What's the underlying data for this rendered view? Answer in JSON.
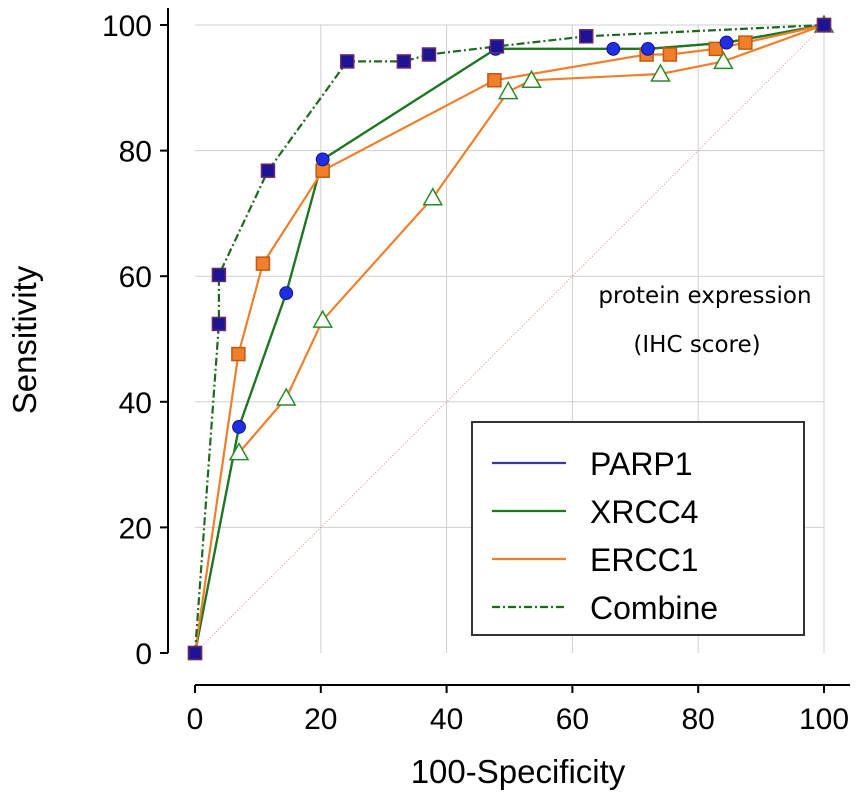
{
  "chart_data": {
    "type": "line",
    "title": "",
    "xlabel": "100-Specificity",
    "ylabel": "Sensitivity",
    "xlim": [
      0,
      100
    ],
    "ylim": [
      0,
      100
    ],
    "x_ticks": [
      "0",
      "20",
      "40",
      "60",
      "80",
      "100"
    ],
    "y_ticks": [
      "0",
      "20",
      "40",
      "60",
      "80",
      "100"
    ],
    "grid": true,
    "legend_position": "bottom-right",
    "annotations": [
      "protein expression",
      "(IHC score)"
    ],
    "reference_line": {
      "x": [
        0,
        100
      ],
      "y": [
        0,
        100
      ],
      "color": "#e08f8f",
      "style": "dotted"
    },
    "series": [
      {
        "name": "PARP1",
        "color": "#3a3a9a",
        "style": "solid",
        "marker": "circle",
        "marker_color": "#1f2ee0",
        "x": [
          0,
          7,
          14.5,
          20.3,
          47.8,
          66.5,
          72,
          84.5,
          100
        ],
        "y": [
          0,
          36,
          57.3,
          78.6,
          96.2,
          96.2,
          96.2,
          97.2,
          100
        ]
      },
      {
        "name": "XRCC4",
        "color": "#1b7a1b",
        "style": "solid",
        "marker": "none",
        "x": [
          0,
          7,
          14.5,
          20.3,
          47.8,
          72,
          84.5,
          100
        ],
        "y": [
          0,
          36,
          57.3,
          78.6,
          96.2,
          96.2,
          97.2,
          100
        ]
      },
      {
        "name": "ERCC1",
        "color": "#f07e2a",
        "style": "solid",
        "marker": "square",
        "marker_color": "#f07e2a",
        "x": [
          0,
          6.9,
          10.8,
          20.3,
          47.6,
          71.8,
          75.5,
          82.8,
          87.5,
          100
        ],
        "y": [
          0,
          47.6,
          62,
          76.8,
          91.2,
          95.3,
          95.3,
          96.2,
          97.2,
          100
        ],
        "hidden_markers": {
          "marker": "triangle",
          "x": [
            7,
            14.5,
            20.3,
            37.8,
            49.8,
            53.5,
            74,
            84,
            100
          ],
          "y": [
            31.9,
            40.6,
            53,
            72.5,
            89.4,
            91.2,
            92.2,
            94.2,
            100
          ]
        }
      },
      {
        "name": "Combine",
        "color": "#1b6a1b",
        "style": "dashdot",
        "marker": "square",
        "marker_color": "#1c1495",
        "x": [
          0,
          3.8,
          3.8,
          11.6,
          24.2,
          33.2,
          37.2,
          48,
          62.2,
          100
        ],
        "y": [
          0,
          52.4,
          60.2,
          76.8,
          94.2,
          94.2,
          95.3,
          96.6,
          98.2,
          100
        ]
      }
    ]
  }
}
